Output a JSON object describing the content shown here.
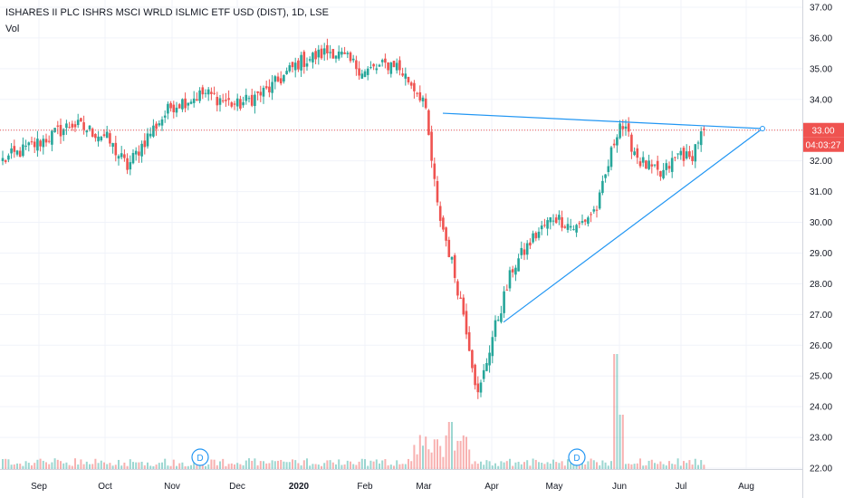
{
  "header": {
    "title": "ISHARES II PLC ISHRS MSCI WRLD ISLMIC ETF USD (DIST), 1D, LSE",
    "indicator": "Vol"
  },
  "price_tag": {
    "value": "33.00",
    "color": "#ef5350"
  },
  "countdown_tag": {
    "value": "04:03:27",
    "color": "#ef5350"
  },
  "dividend_marker": "D",
  "colors": {
    "up": "#26a69a",
    "down": "#ef5350",
    "trendline": "#2196f3",
    "price_line": "#ef5350"
  },
  "chart_data": {
    "type": "candlestick",
    "y_axis": {
      "ticks": [
        "37.00",
        "36.00",
        "35.00",
        "34.00",
        "33.00",
        "32.00",
        "31.00",
        "30.00",
        "29.00",
        "28.00",
        "27.00",
        "26.00",
        "25.00",
        "24.00",
        "23.00",
        "22.00"
      ],
      "min": 21.9,
      "max": 37.2,
      "position": "right"
    },
    "x_axis": {
      "ticks": [
        "Sep",
        "Oct",
        "Nov",
        "Dec",
        "2020",
        "Feb",
        "Mar",
        "Apr",
        "May",
        "Jun",
        "Jul",
        "Aug"
      ],
      "bold": [
        "2020"
      ]
    },
    "grid": true,
    "last_price": 33.0,
    "horizontal_line": 33.0,
    "dividends": [
      "Nov",
      "May"
    ],
    "trendlines": [
      {
        "from": [
          "Mar",
          33.55
        ],
        "to": [
          "Aug",
          33.05
        ]
      },
      {
        "from": [
          "Apr",
          26.75
        ],
        "to": [
          "Aug",
          33.05
        ]
      }
    ],
    "price_path": [
      [
        "Aug",
        32.0
      ],
      [
        "Sep",
        32.6
      ],
      [
        "Sep",
        33.2
      ],
      [
        "Oct",
        32.8
      ],
      [
        "Oct",
        31.8
      ],
      [
        "Oct",
        32.9
      ],
      [
        "Nov",
        33.8
      ],
      [
        "Nov",
        34.2
      ],
      [
        "Dec",
        33.8
      ],
      [
        "Dec",
        34.3
      ],
      [
        "2020",
        35.2
      ],
      [
        "2020",
        35.6
      ],
      [
        "Feb",
        34.9
      ],
      [
        "Feb",
        35.2
      ],
      [
        "Mar",
        34.0
      ],
      [
        "Mar",
        30.5
      ],
      [
        "Mar",
        28.8
      ],
      [
        "Mar",
        26.9
      ],
      [
        "Mar",
        24.3
      ],
      [
        "Apr",
        26.2
      ],
      [
        "Apr",
        28.5
      ],
      [
        "Apr",
        29.5
      ],
      [
        "May",
        30.2
      ],
      [
        "May",
        29.8
      ],
      [
        "May",
        30.5
      ],
      [
        "Jun",
        33.3
      ],
      [
        "Jun",
        32.0
      ],
      [
        "Jun",
        31.5
      ],
      [
        "Jul",
        32.3
      ],
      [
        "Jul",
        32.0
      ],
      [
        "Jul",
        32.7
      ],
      [
        "Jul",
        33.0
      ]
    ],
    "volume_spikes": [
      [
        "Mar",
        "high"
      ],
      [
        "May",
        "very high"
      ]
    ]
  }
}
